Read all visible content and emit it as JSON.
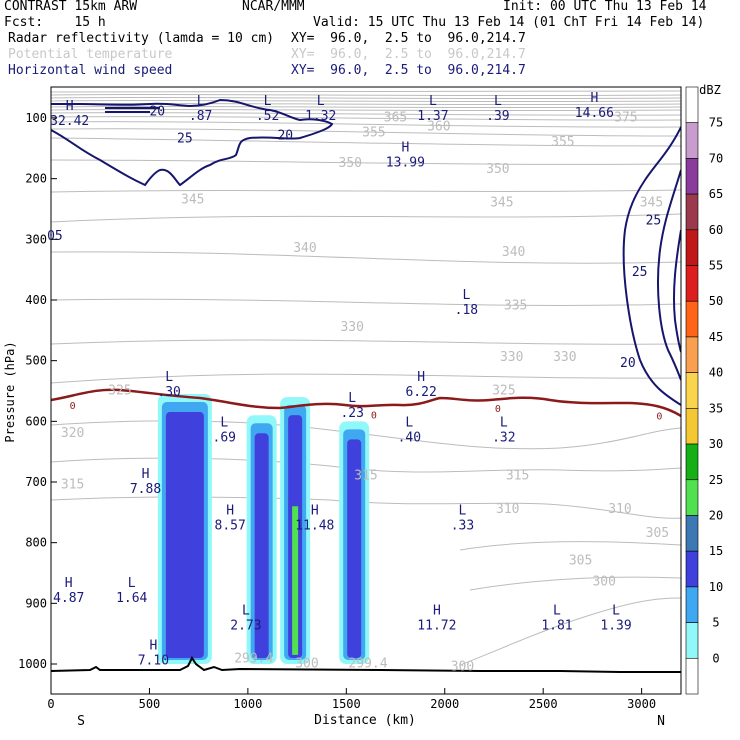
{
  "header": {
    "line1_left": "CONTRAST 15km ARW",
    "line1_center": "NCAR/MMM",
    "line1_right": "Init: 00 UTC Thu 13 Feb 14",
    "line2_left": "Fcst:    15 h",
    "line2_right": "Valid: 15 UTC Thu 13 Feb 14 (01 ChT Fri 14 Feb 14)",
    "field1_name": "Radar reflectivity (lamda = 10 cm)",
    "field1_xy": "XY=  96.0,  2.5 to  96.0,214.7",
    "field2_name": "Potential temperature",
    "field2_xy": "XY=  96.0,  2.5 to  96.0,214.7",
    "field3_name": "Horizontal wind speed",
    "field3_xy": "XY=  96.0,  2.5 to  96.0,214.7"
  },
  "colors": {
    "theta": "#bcbcbc",
    "wind": "#16166e",
    "zero_line": "#8b1a1a",
    "terrain": "#000000",
    "hl_label": "#1a1a7a"
  },
  "chart_data": {
    "type": "cross-section",
    "ylabel": "Pressure (hPa)",
    "xlabel": "Distance (km)",
    "xlim": [
      0,
      3200
    ],
    "ylim_hpa": [
      1050,
      50
    ],
    "x_ticks": [
      "0",
      "500",
      "1000",
      "1500",
      "2000",
      "2500",
      "3000"
    ],
    "x_tick_values": [
      0,
      500,
      1000,
      1500,
      2000,
      2500,
      3000
    ],
    "y_ticks": [
      "100",
      "200",
      "300",
      "400",
      "500",
      "600",
      "700",
      "800",
      "900",
      "1000"
    ],
    "y_tick_values": [
      100,
      200,
      300,
      400,
      500,
      600,
      700,
      800,
      900,
      1000
    ],
    "x_end_labels": {
      "left": "S",
      "right": "N"
    },
    "colorbar": {
      "units": "dBZ",
      "levels": [
        "75",
        "70",
        "65",
        "60",
        "55",
        "50",
        "45",
        "40",
        "35",
        "30",
        "25",
        "20",
        "15",
        "10",
        "5",
        "0"
      ],
      "colors": [
        "#ffffff",
        "#c89ccc",
        "#8a3c9c",
        "#9a3a4c",
        "#c01818",
        "#dc1e1e",
        "#ff6418",
        "#f8a050",
        "#fad44c",
        "#f4c832",
        "#16b016",
        "#50e050",
        "#3c78b4",
        "#4040dc",
        "#40a8f0",
        "#90f8f8",
        "#ffffff"
      ]
    },
    "reflectivity_columns": [
      {
        "x_km": 680,
        "top_hpa": 555,
        "bottom_hpa": 1000,
        "peak_dbz": 20
      },
      {
        "x_km": 1070,
        "top_hpa": 590,
        "bottom_hpa": 1000,
        "peak_dbz": 15
      },
      {
        "x_km": 1240,
        "top_hpa": 560,
        "bottom_hpa": 1000,
        "peak_dbz": 30
      },
      {
        "x_km": 1540,
        "top_hpa": 600,
        "bottom_hpa": 1000,
        "peak_dbz": 15
      }
    ],
    "theta_contour_labels": [
      {
        "text": "375",
        "x_km": 2920,
        "p_hpa": 100
      },
      {
        "text": "365",
        "x_km": 1750,
        "p_hpa": 100
      },
      {
        "text": "360",
        "x_km": 1970,
        "p_hpa": 115
      },
      {
        "text": "355",
        "x_km": 1640,
        "p_hpa": 125
      },
      {
        "text": "355",
        "x_km": 2600,
        "p_hpa": 140
      },
      {
        "text": "350",
        "x_km": 1520,
        "p_hpa": 175
      },
      {
        "text": "350",
        "x_km": 2270,
        "p_hpa": 185
      },
      {
        "text": "345",
        "x_km": 720,
        "p_hpa": 235
      },
      {
        "text": "345",
        "x_km": 2290,
        "p_hpa": 240
      },
      {
        "text": "345",
        "x_km": 3050,
        "p_hpa": 240
      },
      {
        "text": "340",
        "x_km": 1290,
        "p_hpa": 315
      },
      {
        "text": "340",
        "x_km": 2350,
        "p_hpa": 322
      },
      {
        "text": "335",
        "x_km": 2360,
        "p_hpa": 410
      },
      {
        "text": "330",
        "x_km": 1530,
        "p_hpa": 445
      },
      {
        "text": "330",
        "x_km": 2340,
        "p_hpa": 495
      },
      {
        "text": "330",
        "x_km": 2610,
        "p_hpa": 495
      },
      {
        "text": "325",
        "x_km": 350,
        "p_hpa": 550
      },
      {
        "text": "325",
        "x_km": 2300,
        "p_hpa": 550
      },
      {
        "text": "320",
        "x_km": 110,
        "p_hpa": 620
      },
      {
        "text": "315",
        "x_km": 110,
        "p_hpa": 705
      },
      {
        "text": "315",
        "x_km": 1600,
        "p_hpa": 690
      },
      {
        "text": "315",
        "x_km": 2370,
        "p_hpa": 690
      },
      {
        "text": "310",
        "x_km": 2320,
        "p_hpa": 745
      },
      {
        "text": "310",
        "x_km": 2890,
        "p_hpa": 745
      },
      {
        "text": "305",
        "x_km": 3080,
        "p_hpa": 785
      },
      {
        "text": "305",
        "x_km": 2690,
        "p_hpa": 830
      },
      {
        "text": "300",
        "x_km": 2810,
        "p_hpa": 865
      },
      {
        "text": "300",
        "x_km": 1300,
        "p_hpa": 1000
      },
      {
        "text": "300",
        "x_km": 2090,
        "p_hpa": 1005
      },
      {
        "text": "299.4",
        "x_km": 1030,
        "p_hpa": 992
      },
      {
        "text": "299.4",
        "x_km": 1610,
        "p_hpa": 1000
      }
    ],
    "wind_contour_labels": [
      {
        "text": "20",
        "x_km": 540,
        "p_hpa": 90
      },
      {
        "text": "25",
        "x_km": 680,
        "p_hpa": 135
      },
      {
        "text": "20",
        "x_km": 1190,
        "p_hpa": 130
      },
      {
        "text": "25",
        "x_km": 2990,
        "p_hpa": 355
      },
      {
        "text": "20",
        "x_km": 2930,
        "p_hpa": 505
      },
      {
        "text": "25",
        "x_km": 3060,
        "p_hpa": 270
      },
      {
        "text": "05",
        "x_km": 20,
        "p_hpa": 295
      }
    ],
    "zero_line_labels": [
      {
        "text": "0",
        "x_km": 110,
        "p_hpa": 575
      },
      {
        "text": "0",
        "x_km": 1640,
        "p_hpa": 590
      },
      {
        "text": "0",
        "x_km": 2270,
        "p_hpa": 580
      },
      {
        "text": "0",
        "x_km": 3090,
        "p_hpa": 592
      }
    ],
    "hl_markers": [
      {
        "type": "H",
        "value": "32.42",
        "x_km": 95,
        "p_hpa": 98
      },
      {
        "type": "L",
        "value": ".87",
        "x_km": 760,
        "p_hpa": 90
      },
      {
        "type": "L",
        "value": ".52",
        "x_km": 1100,
        "p_hpa": 90
      },
      {
        "type": "L",
        "value": "1.32",
        "x_km": 1370,
        "p_hpa": 90
      },
      {
        "type": "L",
        "value": "1.37",
        "x_km": 1940,
        "p_hpa": 90
      },
      {
        "type": "L",
        "value": ".39",
        "x_km": 2270,
        "p_hpa": 90
      },
      {
        "type": "H",
        "value": "14.66",
        "x_km": 2760,
        "p_hpa": 85
      },
      {
        "type": "H",
        "value": "13.99",
        "x_km": 1800,
        "p_hpa": 167
      },
      {
        "type": "L",
        "value": ".18",
        "x_km": 2110,
        "p_hpa": 410
      },
      {
        "type": "L",
        "value": ".30",
        "x_km": 600,
        "p_hpa": 545
      },
      {
        "type": "H",
        "value": "6.22",
        "x_km": 1880,
        "p_hpa": 545
      },
      {
        "type": "L",
        "value": ".23",
        "x_km": 1530,
        "p_hpa": 580
      },
      {
        "type": "L",
        "value": ".69",
        "x_km": 880,
        "p_hpa": 620
      },
      {
        "type": "L",
        "value": ".40",
        "x_km": 1820,
        "p_hpa": 620
      },
      {
        "type": "L",
        "value": ".32",
        "x_km": 2300,
        "p_hpa": 620
      },
      {
        "type": "H",
        "value": "7.88",
        "x_km": 480,
        "p_hpa": 705
      },
      {
        "type": "H",
        "value": "8.57",
        "x_km": 910,
        "p_hpa": 765
      },
      {
        "type": "H",
        "value": "11.48",
        "x_km": 1340,
        "p_hpa": 765
      },
      {
        "type": "L",
        "value": ".33",
        "x_km": 2090,
        "p_hpa": 765
      },
      {
        "type": "H",
        "value": "4.87",
        "x_km": 90,
        "p_hpa": 885
      },
      {
        "type": "L",
        "value": "1.64",
        "x_km": 410,
        "p_hpa": 885
      },
      {
        "type": "L",
        "value": "2.73",
        "x_km": 990,
        "p_hpa": 930
      },
      {
        "type": "H",
        "value": "11.72",
        "x_km": 1960,
        "p_hpa": 930
      },
      {
        "type": "L",
        "value": "1.81",
        "x_km": 2570,
        "p_hpa": 930
      },
      {
        "type": "L",
        "value": "1.39",
        "x_km": 2870,
        "p_hpa": 930
      },
      {
        "type": "H",
        "value": "7.10",
        "x_km": 520,
        "p_hpa": 988
      }
    ]
  }
}
